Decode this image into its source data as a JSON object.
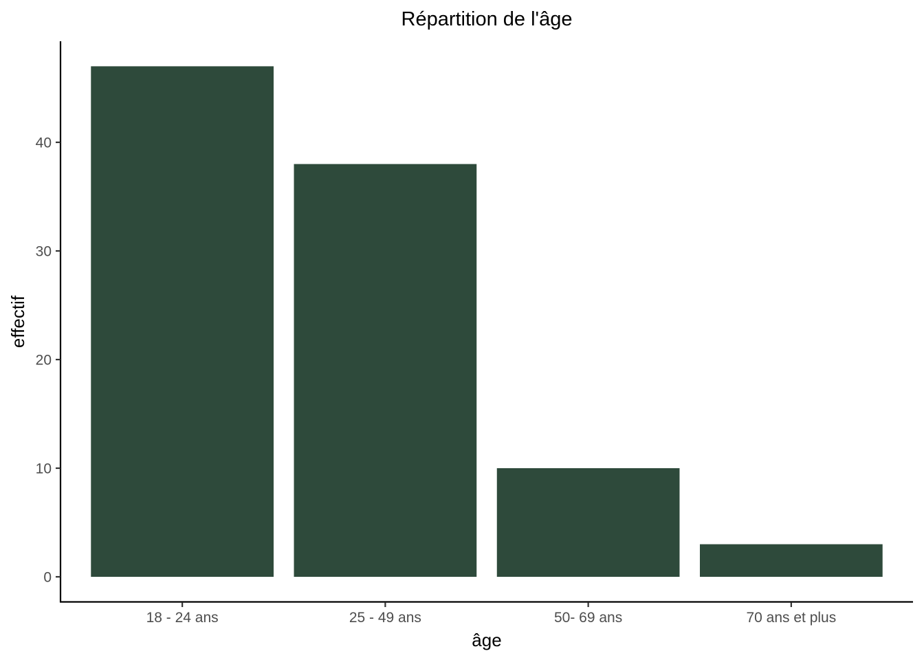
{
  "chart_data": {
    "type": "bar",
    "title": "Répartition de l'âge",
    "xlabel": "âge",
    "ylabel": "effectif",
    "categories": [
      "18 - 24 ans",
      "25 - 49 ans",
      "50- 69 ans",
      "70 ans et plus"
    ],
    "values": [
      47,
      38,
      10,
      3
    ],
    "ylim": [
      0,
      49.35
    ],
    "yticks": [
      0,
      10,
      20,
      30,
      40
    ],
    "ytick_labels": [
      "0",
      "10",
      "20",
      "30",
      "40"
    ],
    "bar_color": "#2e4a3b",
    "grid": false,
    "legend": "none"
  }
}
